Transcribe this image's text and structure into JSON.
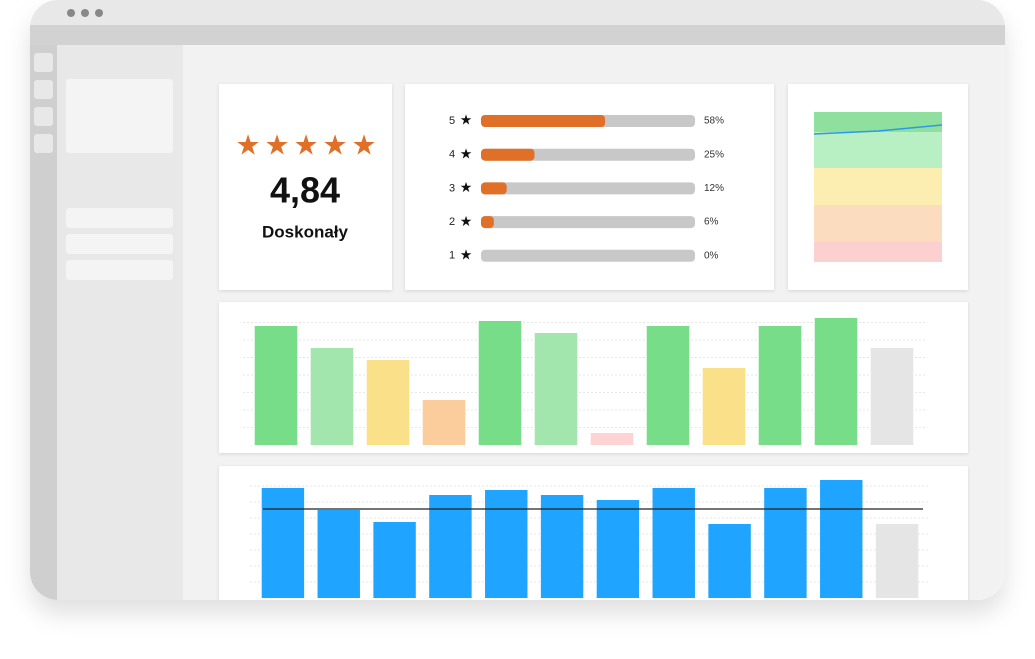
{
  "rating": {
    "star_symbol": "★",
    "score": "4,84",
    "label": "Doskonały"
  },
  "distribution": {
    "rows": [
      {
        "rating": "5",
        "value": 58,
        "value_label": "58%"
      },
      {
        "rating": "4",
        "value": 25,
        "value_label": "25%"
      },
      {
        "rating": "3",
        "value": 12,
        "value_label": "12%"
      },
      {
        "rating": "2",
        "value": 6,
        "value_label": "6%"
      },
      {
        "rating": "1",
        "value": 0,
        "value_label": "0%"
      }
    ],
    "xlim": [
      0,
      100
    ],
    "color": "#e07028",
    "track_color": "#c8c8c8"
  },
  "chart_data": [
    {
      "type": "line",
      "values": [
        128,
        131,
        137
      ],
      "ylim": [
        0,
        150
      ],
      "color": "#2a9ae8"
    },
    {
      "type": "bar",
      "values": [
        119,
        97,
        85,
        45,
        124,
        112,
        12,
        119,
        77,
        119,
        127,
        97
      ],
      "ylim": [
        0,
        140
      ],
      "colors": [
        "#77dd88",
        "#a3e6ad",
        "#fbe08a",
        "#fbcc9c",
        "#77dd88",
        "#a3e6ad",
        "#fdd3d3",
        "#77dd88",
        "#fbe08a",
        "#77dd88",
        "#77dd88",
        "#e5e5e5"
      ]
    },
    {
      "type": "bar",
      "values": [
        110,
        88,
        76,
        103,
        108,
        103,
        98,
        110,
        74,
        110,
        118,
        74
      ],
      "ylim": [
        0,
        128
      ],
      "reference": 89,
      "colors": [
        "#1fa5ff",
        "#1fa5ff",
        "#1fa5ff",
        "#1fa5ff",
        "#1fa5ff",
        "#1fa5ff",
        "#1fa5ff",
        "#1fa5ff",
        "#1fa5ff",
        "#1fa5ff",
        "#1fa5ff",
        "#e5e5e5"
      ]
    }
  ]
}
